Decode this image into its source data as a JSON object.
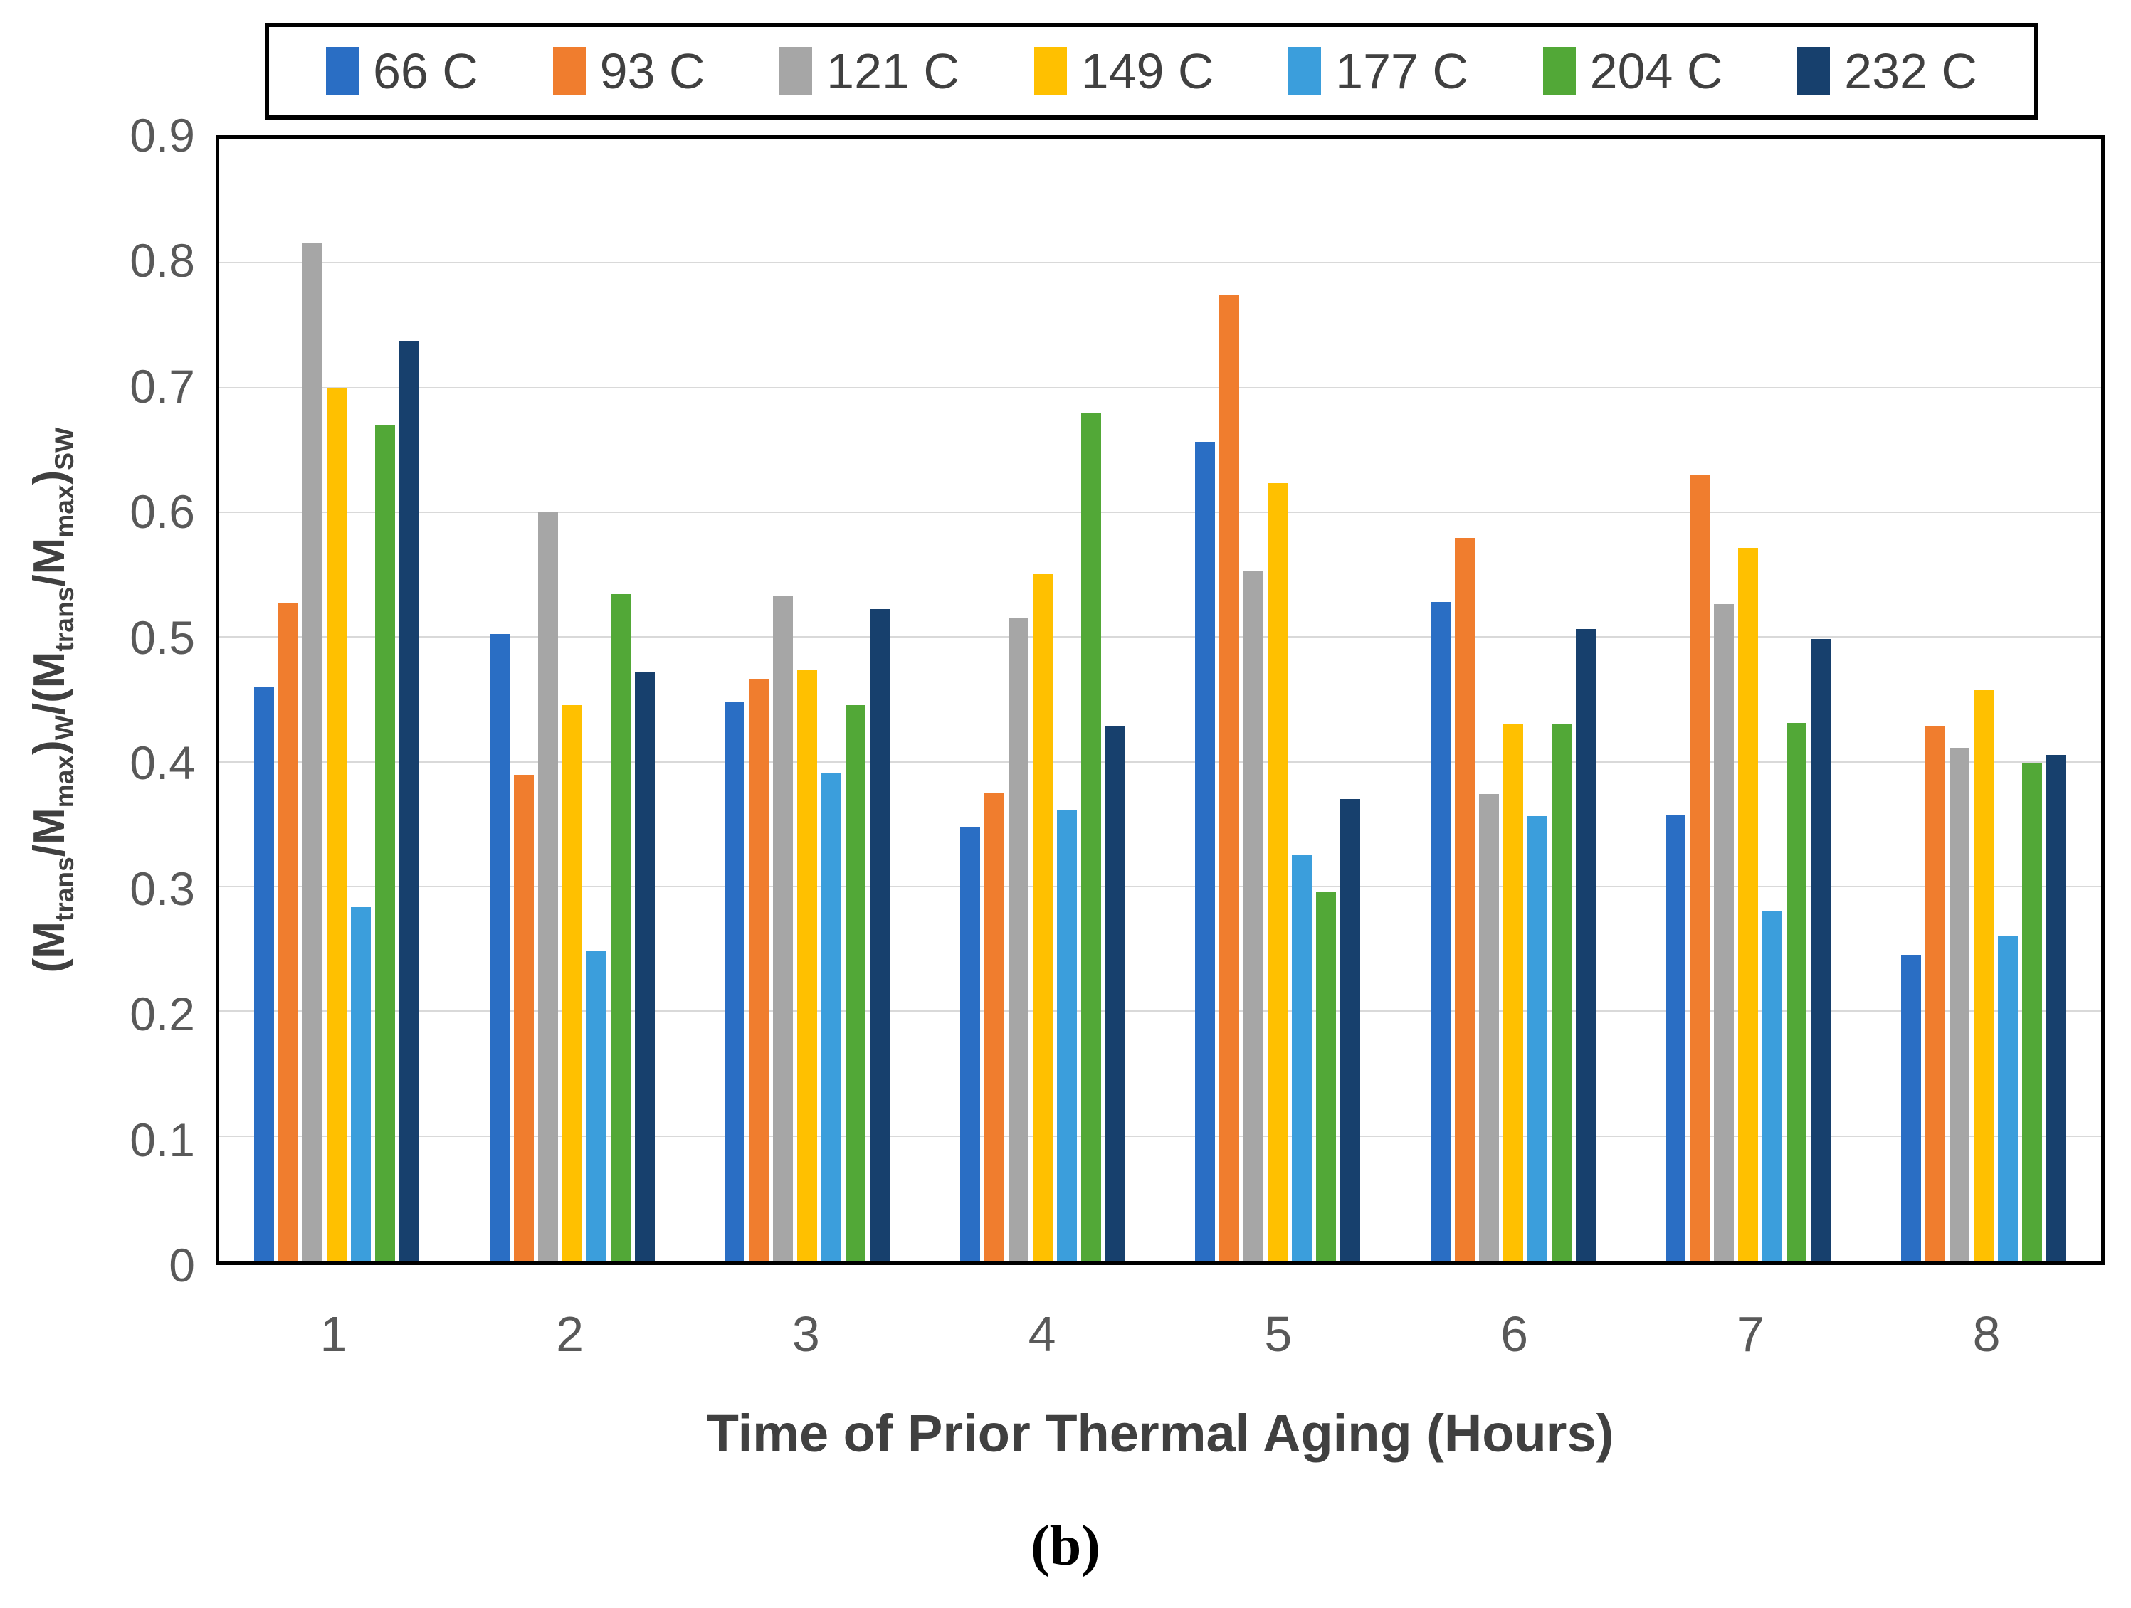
{
  "figure": {
    "caption": "(b)"
  },
  "chart_data": {
    "type": "bar",
    "title": "",
    "categories": [
      "1",
      "2",
      "3",
      "4",
      "5",
      "6",
      "7",
      "8"
    ],
    "xlabel": "Time of Prior Thermal Aging (Hours)",
    "ylabel_plain": "(Mtrans/Mmax)W/(Mtrans/Mmax)SW",
    "ylabel_segments": [
      {
        "t": "(M"
      },
      {
        "t": "trans",
        "sub": true
      },
      {
        "t": "/M"
      },
      {
        "t": "max",
        "sub": true
      },
      {
        "t": ")"
      },
      {
        "t": "W",
        "sub": true
      },
      {
        "t": "/(M"
      },
      {
        "t": "trans",
        "sub": true
      },
      {
        "t": "/M"
      },
      {
        "t": "max",
        "sub": true
      },
      {
        "t": ")"
      },
      {
        "t": "SW",
        "sub": true
      }
    ],
    "ylim": [
      0,
      0.9
    ],
    "ytick_step": 0.1,
    "ytick_labels": [
      "0",
      "0.1",
      "0.2",
      "0.3",
      "0.4",
      "0.5",
      "0.6",
      "0.7",
      "0.8",
      "0.9"
    ],
    "grid": "horizontal",
    "gridline_color": "#d9d9d9",
    "legend_position": "top",
    "series": [
      {
        "name": "66 C",
        "color": "#2a6ec4",
        "values": [
          0.46,
          0.503,
          0.449,
          0.348,
          0.657,
          0.529,
          0.358,
          0.246
        ]
      },
      {
        "name": "93 C",
        "color": "#f07d2e",
        "values": [
          0.528,
          0.39,
          0.467,
          0.376,
          0.775,
          0.58,
          0.63,
          0.429
        ]
      },
      {
        "name": "121 C",
        "color": "#a6a6a6",
        "values": [
          0.816,
          0.601,
          0.533,
          0.516,
          0.553,
          0.375,
          0.527,
          0.412
        ]
      },
      {
        "name": "149 C",
        "color": "#ffc000",
        "values": [
          0.7,
          0.446,
          0.474,
          0.551,
          0.624,
          0.431,
          0.572,
          0.458
        ]
      },
      {
        "name": "177 C",
        "color": "#3b9edc",
        "values": [
          0.284,
          0.249,
          0.392,
          0.362,
          0.326,
          0.357,
          0.281,
          0.261
        ]
      },
      {
        "name": "204 C",
        "color": "#52a837",
        "values": [
          0.67,
          0.535,
          0.446,
          0.68,
          0.296,
          0.431,
          0.432,
          0.399
        ]
      },
      {
        "name": "232 C",
        "color": "#17406d",
        "values": [
          0.738,
          0.473,
          0.523,
          0.429,
          0.371,
          0.507,
          0.499,
          0.406
        ]
      }
    ]
  }
}
